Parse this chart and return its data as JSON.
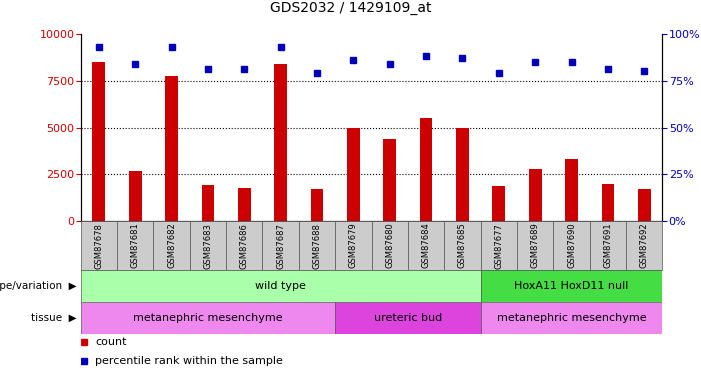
{
  "title": "GDS2032 / 1429109_at",
  "samples": [
    "GSM87678",
    "GSM87681",
    "GSM87682",
    "GSM87683",
    "GSM87686",
    "GSM87687",
    "GSM87688",
    "GSM87679",
    "GSM87680",
    "GSM87684",
    "GSM87685",
    "GSM87677",
    "GSM87689",
    "GSM87690",
    "GSM87691",
    "GSM87692"
  ],
  "counts": [
    8500,
    2700,
    7750,
    1950,
    1750,
    8400,
    1700,
    5000,
    4400,
    5500,
    5000,
    1900,
    2800,
    3300,
    2000,
    1700
  ],
  "percentiles": [
    93,
    84,
    93,
    81,
    81,
    93,
    79,
    86,
    84,
    88,
    87,
    79,
    85,
    85,
    81,
    80
  ],
  "ylim_left": [
    0,
    10000
  ],
  "ylim_right": [
    0,
    100
  ],
  "yticks_left": [
    0,
    2500,
    5000,
    7500,
    10000
  ],
  "yticks_right": [
    0,
    25,
    50,
    75,
    100
  ],
  "genotype_groups": [
    {
      "label": "wild type",
      "start": 0,
      "end": 10,
      "color": "#AAFFAA"
    },
    {
      "label": "HoxA11 HoxD11 null",
      "start": 11,
      "end": 15,
      "color": "#44DD44"
    }
  ],
  "tissue_groups": [
    {
      "label": "metanephric mesenchyme",
      "start": 0,
      "end": 6,
      "color": "#EE88EE"
    },
    {
      "label": "ureteric bud",
      "start": 7,
      "end": 10,
      "color": "#DD44DD"
    },
    {
      "label": "metanephric mesenchyme",
      "start": 11,
      "end": 15,
      "color": "#EE88EE"
    }
  ],
  "bar_color": "#CC0000",
  "dot_color": "#0000BB",
  "tick_label_color_left": "#CC0000",
  "tick_label_color_right": "#0000BB",
  "legend_count_color": "#CC0000",
  "legend_pct_color": "#0000BB",
  "background_color": "#ffffff",
  "bar_width": 0.35
}
